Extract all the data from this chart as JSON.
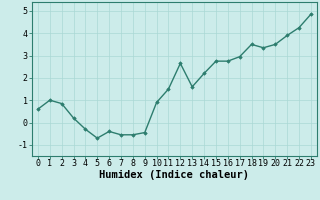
{
  "x": [
    0,
    1,
    2,
    3,
    4,
    5,
    6,
    7,
    8,
    9,
    10,
    11,
    12,
    13,
    14,
    15,
    16,
    17,
    18,
    19,
    20,
    21,
    22,
    23
  ],
  "y": [
    0.6,
    1.0,
    0.85,
    0.2,
    -0.3,
    -0.7,
    -0.4,
    -0.55,
    -0.55,
    -0.45,
    0.9,
    1.5,
    2.65,
    1.6,
    2.2,
    2.75,
    2.75,
    2.95,
    3.5,
    3.35,
    3.5,
    3.9,
    4.25,
    4.85
  ],
  "xlabel": "Humidex (Indice chaleur)",
  "ylim": [
    -1.5,
    5.4
  ],
  "xlim": [
    -0.5,
    23.5
  ],
  "yticks": [
    -1,
    0,
    1,
    2,
    3,
    4,
    5
  ],
  "xticks": [
    0,
    1,
    2,
    3,
    4,
    5,
    6,
    7,
    8,
    9,
    10,
    11,
    12,
    13,
    14,
    15,
    16,
    17,
    18,
    19,
    20,
    21,
    22,
    23
  ],
  "line_color": "#2d7d6e",
  "marker": "D",
  "marker_size": 1.8,
  "line_width": 1.0,
  "bg_color": "#ccecea",
  "grid_color": "#aad8d5",
  "xlabel_fontsize": 7.5,
  "tick_fontsize": 6.0,
  "fig_width": 3.2,
  "fig_height": 2.0,
  "dpi": 100
}
